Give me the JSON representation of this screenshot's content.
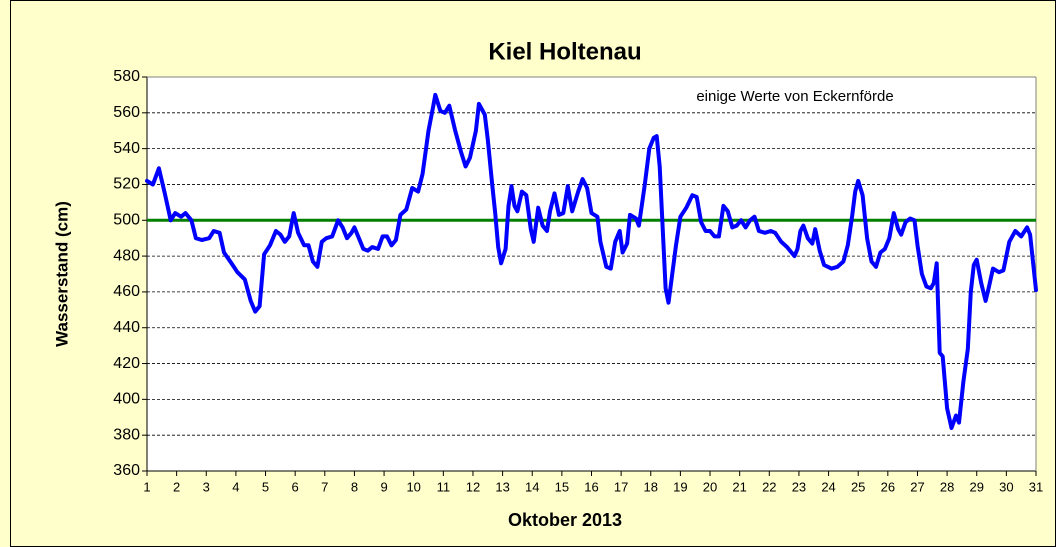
{
  "chart_data": {
    "type": "line",
    "title": "Kiel Holtenau",
    "annotation": "einige Werte von Eckernförde",
    "xlabel": "Oktober 2013",
    "ylabel": "Wasserstand (cm)",
    "color": "#0000ff",
    "reference_line": {
      "value": 500,
      "color": "#008000"
    },
    "grid": true,
    "xlim": [
      1,
      31
    ],
    "xticks": [
      1,
      2,
      3,
      4,
      5,
      6,
      7,
      8,
      9,
      10,
      11,
      12,
      13,
      14,
      15,
      16,
      17,
      18,
      19,
      20,
      21,
      22,
      23,
      24,
      25,
      26,
      27,
      28,
      29,
      30,
      31
    ],
    "ylim": [
      360,
      580
    ],
    "yticks": [
      360,
      380,
      400,
      420,
      440,
      460,
      480,
      500,
      520,
      540,
      560,
      580
    ],
    "x": [
      1.0,
      1.2,
      1.4,
      1.6,
      1.8,
      1.95,
      2.15,
      2.3,
      2.5,
      2.65,
      2.85,
      3.1,
      3.25,
      3.45,
      3.6,
      3.85,
      4.05,
      4.3,
      4.5,
      4.65,
      4.8,
      4.95,
      5.15,
      5.35,
      5.5,
      5.65,
      5.8,
      5.95,
      6.1,
      6.3,
      6.45,
      6.6,
      6.75,
      6.9,
      7.05,
      7.25,
      7.45,
      7.6,
      7.75,
      7.9,
      8.0,
      8.15,
      8.3,
      8.45,
      8.6,
      8.8,
      8.95,
      9.1,
      9.25,
      9.4,
      9.55,
      9.75,
      9.95,
      10.15,
      10.3,
      10.5,
      10.65,
      10.73,
      10.9,
      11.05,
      11.2,
      11.4,
      11.6,
      11.75,
      11.9,
      12.1,
      12.2,
      12.4,
      12.5,
      12.65,
      12.75,
      12.85,
      12.95,
      13.1,
      13.2,
      13.3,
      13.4,
      13.5,
      13.65,
      13.8,
      13.95,
      14.05,
      14.2,
      14.35,
      14.5,
      14.6,
      14.75,
      14.9,
      15.05,
      15.2,
      15.35,
      15.55,
      15.7,
      15.85,
      16.0,
      16.2,
      16.3,
      16.5,
      16.65,
      16.8,
      16.95,
      17.05,
      17.2,
      17.3,
      17.5,
      17.6,
      17.8,
      17.95,
      18.1,
      18.2,
      18.3,
      18.5,
      18.6,
      18.85,
      19.0,
      19.2,
      19.4,
      19.55,
      19.7,
      19.85,
      20.0,
      20.15,
      20.3,
      20.45,
      20.6,
      20.75,
      20.9,
      21.05,
      21.2,
      21.35,
      21.5,
      21.65,
      21.85,
      22.05,
      22.2,
      22.4,
      22.6,
      22.75,
      22.85,
      22.95,
      23.05,
      23.15,
      23.3,
      23.45,
      23.55,
      23.7,
      23.85,
      24.1,
      24.3,
      24.5,
      24.65,
      24.8,
      24.9,
      25.0,
      25.15,
      25.3,
      25.45,
      25.6,
      25.75,
      25.9,
      26.05,
      26.2,
      26.35,
      26.45,
      26.6,
      26.75,
      26.9,
      27.0,
      27.15,
      27.3,
      27.45,
      27.55,
      27.65,
      27.75,
      27.85,
      28.0,
      28.15,
      28.3,
      28.4,
      28.55,
      28.7,
      28.8,
      28.9,
      29.0,
      29.15,
      29.3,
      29.4,
      29.55,
      29.75,
      29.9,
      30.1,
      30.3,
      30.5,
      30.7,
      30.8,
      31.0
    ],
    "values": [
      522,
      520,
      529,
      515,
      500,
      504,
      502,
      504,
      500,
      490,
      489,
      490,
      494,
      493,
      482,
      476,
      471,
      467,
      455,
      449,
      452,
      481,
      486,
      494,
      492,
      488,
      491,
      504,
      493,
      486,
      486,
      477,
      474,
      488,
      490,
      491,
      500,
      496,
      490,
      493,
      496,
      490,
      484,
      483,
      485,
      484,
      491,
      491,
      486,
      489,
      503,
      506,
      518,
      516,
      526,
      550,
      563,
      570,
      561,
      560,
      564,
      550,
      538,
      530,
      535,
      550,
      565,
      559,
      545,
      520,
      504,
      485,
      476,
      484,
      508,
      519,
      508,
      505,
      516,
      514,
      495,
      488,
      507,
      497,
      494,
      505,
      515,
      503,
      504,
      519,
      505,
      516,
      523,
      518,
      504,
      502,
      488,
      474,
      473,
      488,
      494,
      482,
      487,
      503,
      501,
      497,
      520,
      540,
      546,
      547,
      530,
      462,
      454,
      486,
      502,
      507,
      514,
      513,
      499,
      494,
      494,
      491,
      491,
      508,
      505,
      496,
      497,
      500,
      496,
      500,
      502,
      494,
      493,
      494,
      493,
      488,
      485,
      482,
      480,
      484,
      494,
      497,
      490,
      487,
      495,
      483,
      475,
      473,
      474,
      477,
      486,
      503,
      516,
      522,
      514,
      490,
      477,
      474,
      482,
      484,
      490,
      504,
      495,
      492,
      499,
      501,
      500,
      486,
      470,
      463,
      462,
      465,
      476,
      426,
      424,
      395,
      384,
      391,
      387,
      410,
      428,
      460,
      475,
      478,
      465,
      455,
      462,
      473,
      471,
      472,
      488,
      494,
      491,
      496,
      492,
      461
    ]
  }
}
